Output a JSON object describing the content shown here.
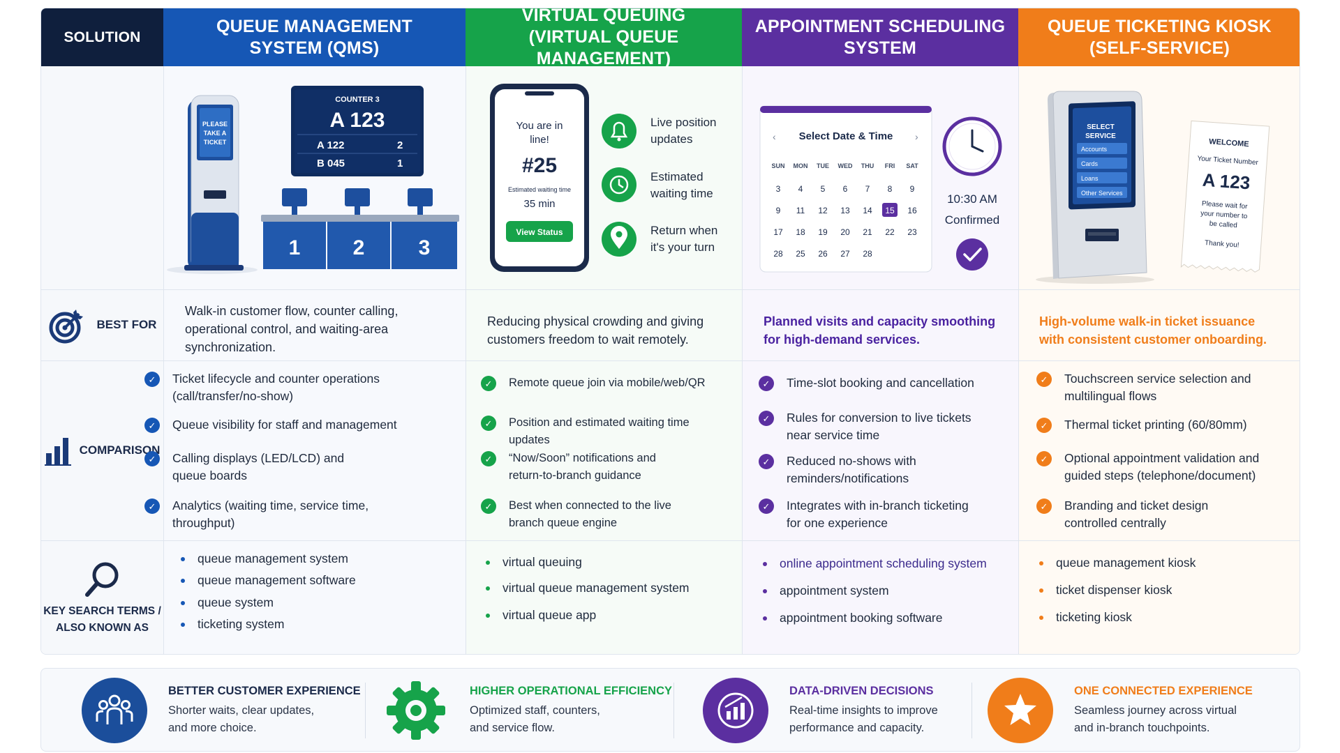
{
  "colors": {
    "navy": "#0f1f3d",
    "blue": "#1657b5",
    "green": "#16a34a",
    "purple": "#5b2fa0",
    "orange": "#f07d1a"
  },
  "headers": {
    "solution": "SOLUTION",
    "qms": [
      "QUEUE MANAGEMENT",
      "SYSTEM (QMS)"
    ],
    "virtual": [
      "VIRTUAL QUEUING",
      "(VIRTUAL QUEUE MANAGEMENT)"
    ],
    "appointment": [
      "APPOINTMENT SCHEDULING",
      "SYSTEM"
    ],
    "kiosk": [
      "QUEUE TICKETING KIOSK",
      "(SELF-SERVICE)"
    ]
  },
  "illustrations": {
    "qms": {
      "kiosk_screen": [
        "PLEASE",
        "TAKE A",
        "TICKET"
      ],
      "board_title": "COUNTER 3",
      "board_main": "A 123",
      "board_rows": [
        [
          "A 122",
          "2"
        ],
        [
          "B 045",
          "1"
        ]
      ],
      "counters": [
        "1",
        "2",
        "3"
      ]
    },
    "virtual": {
      "phone_line1": "You are in",
      "phone_line2": "line!",
      "phone_number": "#25",
      "phone_wait_label": "Estimated waiting time",
      "phone_wait": "35 min",
      "phone_button": "View Status",
      "features": [
        {
          "icon": "bell-icon",
          "lines": [
            "Live position",
            "updates"
          ]
        },
        {
          "icon": "clock-icon",
          "lines": [
            "Estimated",
            "waiting time"
          ]
        },
        {
          "icon": "location-pin-icon",
          "lines": [
            "Return when",
            "it's your turn"
          ]
        }
      ]
    },
    "appointment": {
      "calendar_title": "Select Date & Time",
      "weekdays": [
        "SUN",
        "MON",
        "TUE",
        "WED",
        "THU",
        "FRI",
        "SAT"
      ],
      "days": [
        [
          "3",
          "4",
          "5",
          "6",
          "7",
          "8",
          "9"
        ],
        [
          "9",
          "11",
          "12",
          "13",
          "14",
          "15",
          "16"
        ],
        [
          "17",
          "18",
          "19",
          "20",
          "21",
          "22",
          "23"
        ],
        [
          "28",
          "25",
          "26",
          "27",
          "28",
          "",
          ""
        ]
      ],
      "selected_day": "15",
      "time": "10:30 AM",
      "confirmed": "Confirmed"
    },
    "kiosk": {
      "screen_title": [
        "SELECT",
        "SERVICE"
      ],
      "screen_options": [
        "Accounts",
        "Cards",
        "Loans",
        "Other Services"
      ],
      "ticket_welcome": "WELCOME",
      "ticket_label": "Your Ticket Number",
      "ticket_number": "A 123",
      "ticket_note": [
        "Please wait for",
        "your number to",
        "be called"
      ],
      "ticket_thanks": "Thank you!"
    }
  },
  "rows": {
    "best_for_label": "BEST FOR",
    "comparison_label": "COMPARISON",
    "search_label": [
      "KEY SEARCH TERMS /",
      "ALSO KNOWN AS"
    ]
  },
  "best_for": {
    "qms": [
      "Walk-in customer flow, counter calling,",
      "operational control, and waiting-area",
      "synchronization."
    ],
    "virtual": [
      "Reducing physical crowding and giving",
      "customers freedom to wait remotely."
    ],
    "appointment": [
      "Planned visits and capacity smoothing",
      "for high-demand services."
    ],
    "kiosk": [
      "High-volume walk-in ticket issuance",
      "with consistent customer onboarding."
    ]
  },
  "comparison": {
    "qms": [
      [
        "Ticket lifecycle and counter operations",
        "(call/transfer/no-show)"
      ],
      [
        "Queue visibility for staff and management"
      ],
      [
        "Calling displays (LED/LCD) and",
        "queue boards"
      ],
      [
        "Analytics (waiting time, service time,",
        "throughput)"
      ]
    ],
    "virtual": [
      [
        "Remote queue join via mobile/web/QR"
      ],
      [
        "Position and estimated waiting time updates"
      ],
      [
        "“Now/Soon” notifications and",
        "return-to-branch guidance"
      ],
      [
        "Best when connected to the live",
        "branch queue engine"
      ]
    ],
    "appointment": [
      [
        "Time-slot booking and cancellation"
      ],
      [
        "Rules for conversion to live tickets",
        "near service time"
      ],
      [
        "Reduced no-shows with",
        "reminders/notifications"
      ],
      [
        "Integrates with in-branch ticketing",
        "for one experience"
      ]
    ],
    "kiosk": [
      [
        "Touchscreen service selection and",
        "multilingual flows"
      ],
      [
        "Thermal ticket printing (60/80mm)"
      ],
      [
        "Optional appointment validation and",
        "guided steps (telephone/document)"
      ],
      [
        "Branding and ticket design",
        "controlled centrally"
      ]
    ]
  },
  "search_terms": {
    "qms": [
      "queue management system",
      "queue management software",
      "queue system",
      "ticketing system"
    ],
    "virtual": [
      "virtual queuing",
      "virtual queue management system",
      "virtual queue app"
    ],
    "appointment": [
      "online appointment scheduling system",
      "appointment system",
      "appointment booking software"
    ],
    "kiosk": [
      "queue management kiosk",
      "ticket dispenser kiosk",
      "ticketing kiosk"
    ]
  },
  "benefits": [
    {
      "icon": "people-icon",
      "title": "BETTER CUSTOMER EXPERIENCE",
      "desc": [
        "Shorter waits, clear updates,",
        "and more choice."
      ]
    },
    {
      "icon": "gear-icon",
      "title": "HIGHER OPERATIONAL EFFICIENCY",
      "desc": [
        "Optimized staff, counters,",
        "and service flow."
      ]
    },
    {
      "icon": "chart-icon",
      "title": "DATA-DRIVEN DECISIONS",
      "desc": [
        "Real-time insights to improve",
        "performance and capacity."
      ]
    },
    {
      "icon": "star-icon",
      "title": "ONE CONNECTED EXPERIENCE",
      "desc": [
        "Seamless journey across virtual",
        "and in-branch touchpoints."
      ]
    }
  ]
}
